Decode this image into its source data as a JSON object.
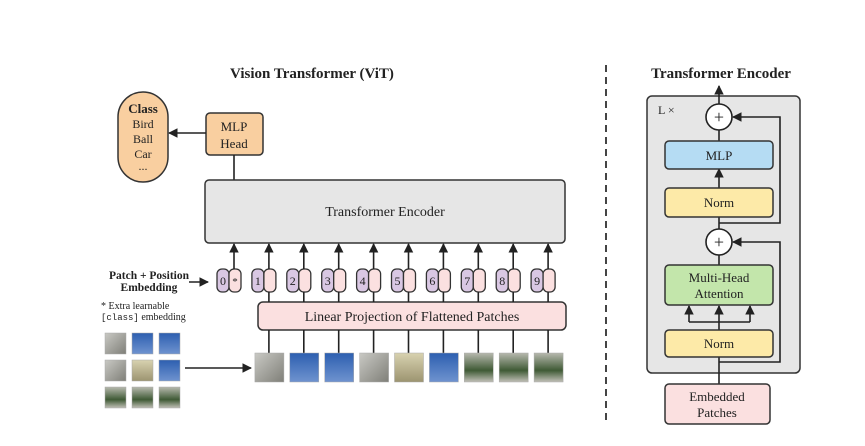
{
  "left": {
    "title": "Vision Transformer (ViT)",
    "class_box": {
      "heading": "Class",
      "items": [
        "Bird",
        "Ball",
        "Car",
        "..."
      ]
    },
    "mlp_head": [
      "MLP",
      "Head"
    ],
    "encoder_label": "Transformer Encoder",
    "embedding_label": [
      "Patch + Position",
      "Embedding"
    ],
    "note_line1": "* Extra learnable",
    "note_class": "[class]",
    "note_embedding": " embedding",
    "projection_label": "Linear Projection of Flattened Patches",
    "tokens": [
      "0",
      "1",
      "2",
      "3",
      "4",
      "5",
      "6",
      "7",
      "8",
      "9"
    ],
    "extra_token_mark": "*"
  },
  "right": {
    "title": "Transformer Encoder",
    "repeat_label": "L ×",
    "plus": "+",
    "mlp": "MLP",
    "norm": "Norm",
    "attention": [
      "Multi-Head",
      "Attention"
    ],
    "input": [
      "Embedded",
      "Patches"
    ]
  },
  "colors": {
    "orange": "#f9cfa0",
    "gray": "#e6e6e6",
    "pink": "#fbe0e0",
    "purple": "#d9c7e3",
    "blue": "#b5dcf3",
    "yellow": "#fdeaa8",
    "green": "#c3e6ab"
  }
}
